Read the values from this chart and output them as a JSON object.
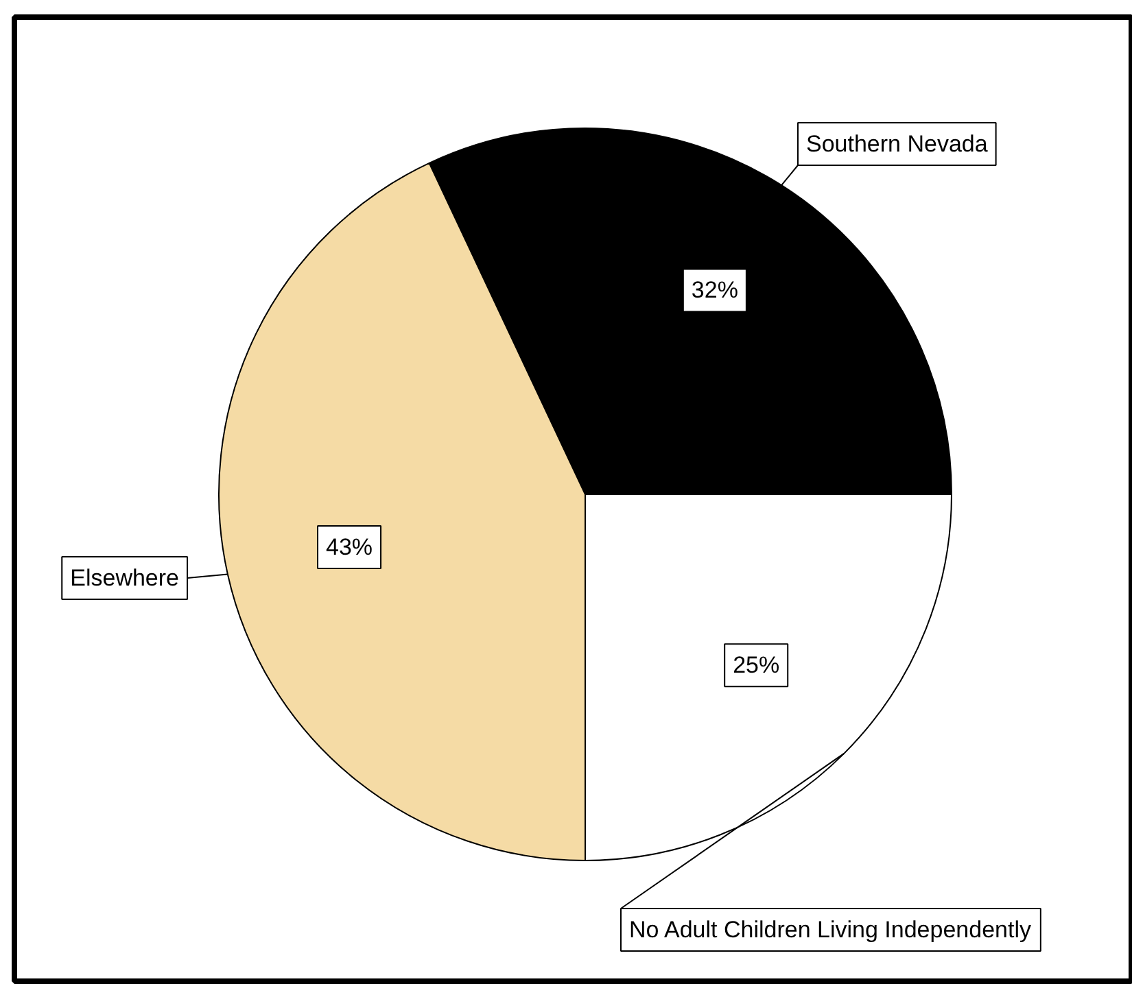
{
  "chart_data": {
    "type": "pie",
    "categories": [
      "Southern Nevada",
      "Elsewhere",
      "No Adult Children Living Independently"
    ],
    "values": [
      32,
      43,
      25
    ],
    "colors": [
      "#000000",
      "#f5dba5",
      "#ffffff"
    ],
    "value_labels": [
      "32%",
      "43%",
      "25%"
    ]
  }
}
